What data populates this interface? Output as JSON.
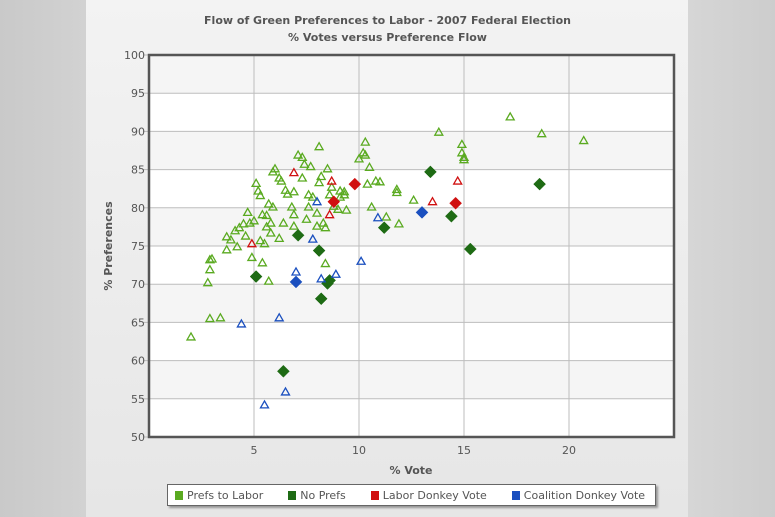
{
  "title": "Flow of Green Preferences to Labor - 2007 Federal Election",
  "subtitle": "% Votes versus Preference Flow",
  "colors": {
    "prefs_to_labor": "#5aaa20",
    "no_prefs": "#1e6b14",
    "labor_donkey": "#d01010",
    "coalition_donkey": "#1a4fbf",
    "plot_band": "#f5f5f5",
    "grid": "#bdbdbd",
    "axis": "#555555"
  },
  "legend": [
    {
      "label": "Prefs to Labor",
      "color": "#5aaa20"
    },
    {
      "label": "No Prefs",
      "color": "#1e6b14"
    },
    {
      "label": "Labor Donkey Vote",
      "color": "#d01010"
    },
    {
      "label": "Coalition Donkey Vote",
      "color": "#1a4fbf"
    }
  ],
  "chart_data": {
    "type": "scatter",
    "title": "Flow of Green Preferences to Labor - 2007 Federal Election",
    "subtitle": "% Votes versus Preference Flow",
    "xlabel": "% Vote",
    "ylabel": "% Preferences",
    "xlim": [
      0,
      25
    ],
    "ylim": [
      50,
      100
    ],
    "x_ticks": [
      5,
      10,
      15,
      20
    ],
    "y_ticks": [
      50,
      55,
      60,
      65,
      70,
      75,
      80,
      85,
      90,
      95,
      100
    ],
    "grid": true,
    "legend_position": "bottom",
    "series": [
      {
        "name": "Prefs to Labor",
        "marker": "triangle",
        "points": [
          [
            2.0,
            63.1
          ],
          [
            2.9,
            65.5
          ],
          [
            3.4,
            65.6
          ],
          [
            2.8,
            70.2
          ],
          [
            2.9,
            73.2
          ],
          [
            3.0,
            73.3
          ],
          [
            2.9,
            71.9
          ],
          [
            3.7,
            74.5
          ],
          [
            3.7,
            76.2
          ],
          [
            3.9,
            75.8
          ],
          [
            4.3,
            77.4
          ],
          [
            4.1,
            77.0
          ],
          [
            4.2,
            74.9
          ],
          [
            4.5,
            77.9
          ],
          [
            4.7,
            79.4
          ],
          [
            4.6,
            76.3
          ],
          [
            4.8,
            78.0
          ],
          [
            4.9,
            73.5
          ],
          [
            5.0,
            78.3
          ],
          [
            5.1,
            83.2
          ],
          [
            5.2,
            82.2
          ],
          [
            5.3,
            81.6
          ],
          [
            5.4,
            79.1
          ],
          [
            5.4,
            72.8
          ],
          [
            5.3,
            75.7
          ],
          [
            5.5,
            75.3
          ],
          [
            5.6,
            79.0
          ],
          [
            5.7,
            70.4
          ],
          [
            5.6,
            77.5
          ],
          [
            5.8,
            78.0
          ],
          [
            5.8,
            76.7
          ],
          [
            5.7,
            80.5
          ],
          [
            5.9,
            80.1
          ],
          [
            5.9,
            84.7
          ],
          [
            6.0,
            85.1
          ],
          [
            6.2,
            83.9
          ],
          [
            6.3,
            83.5
          ],
          [
            6.2,
            76.0
          ],
          [
            6.4,
            78.0
          ],
          [
            6.5,
            82.3
          ],
          [
            6.6,
            81.8
          ],
          [
            6.8,
            80.1
          ],
          [
            6.9,
            82.1
          ],
          [
            6.9,
            79.1
          ],
          [
            6.9,
            77.6
          ],
          [
            7.1,
            86.9
          ],
          [
            7.3,
            86.6
          ],
          [
            7.3,
            83.9
          ],
          [
            7.4,
            85.7
          ],
          [
            7.6,
            80.1
          ],
          [
            7.7,
            85.4
          ],
          [
            7.6,
            81.7
          ],
          [
            7.5,
            78.5
          ],
          [
            7.8,
            81.4
          ],
          [
            8.0,
            77.6
          ],
          [
            8.1,
            88.0
          ],
          [
            8.0,
            79.3
          ],
          [
            8.1,
            83.3
          ],
          [
            8.2,
            84.1
          ],
          [
            8.3,
            78.0
          ],
          [
            8.4,
            77.4
          ],
          [
            8.4,
            72.7
          ],
          [
            8.5,
            85.1
          ],
          [
            8.6,
            81.7
          ],
          [
            8.7,
            82.7
          ],
          [
            8.8,
            80.2
          ],
          [
            9.0,
            79.8
          ],
          [
            9.1,
            81.4
          ],
          [
            9.1,
            82.2
          ],
          [
            9.3,
            82.1
          ],
          [
            9.4,
            79.7
          ],
          [
            9.3,
            81.7
          ],
          [
            10.0,
            86.4
          ],
          [
            10.2,
            87.2
          ],
          [
            10.3,
            88.6
          ],
          [
            10.3,
            86.9
          ],
          [
            10.4,
            83.1
          ],
          [
            10.5,
            85.3
          ],
          [
            10.6,
            80.1
          ],
          [
            10.8,
            83.5
          ],
          [
            11.0,
            83.4
          ],
          [
            11.3,
            78.8
          ],
          [
            11.8,
            82.4
          ],
          [
            11.8,
            82.0
          ],
          [
            11.9,
            77.9
          ],
          [
            12.6,
            81.0
          ],
          [
            13.8,
            89.9
          ],
          [
            14.9,
            88.3
          ],
          [
            14.9,
            87.2
          ],
          [
            15.0,
            86.6
          ],
          [
            15.0,
            86.3
          ],
          [
            17.2,
            91.9
          ],
          [
            18.7,
            89.7
          ],
          [
            20.7,
            88.8
          ]
        ]
      },
      {
        "name": "No Prefs",
        "marker": "diamond",
        "points": [
          [
            6.4,
            58.6
          ],
          [
            5.1,
            71.0
          ],
          [
            7.1,
            76.4
          ],
          [
            8.1,
            74.4
          ],
          [
            8.5,
            70.1
          ],
          [
            8.6,
            70.5
          ],
          [
            8.2,
            68.1
          ],
          [
            11.2,
            77.4
          ],
          [
            13.4,
            84.7
          ],
          [
            14.4,
            78.9
          ],
          [
            15.3,
            74.6
          ],
          [
            18.6,
            83.1
          ]
        ]
      },
      {
        "name": "Labor Donkey Vote",
        "marker": "mixed",
        "points": [
          [
            6.9,
            84.6
          ],
          [
            4.9,
            75.3
          ],
          [
            8.7,
            83.5
          ],
          [
            8.6,
            79.1
          ],
          [
            13.5,
            80.8
          ],
          [
            14.7,
            83.5
          ],
          [
            9.8,
            83.1
          ],
          [
            8.8,
            80.8
          ],
          [
            14.6,
            80.6
          ]
        ]
      },
      {
        "name": "Coalition Donkey Vote",
        "marker": "mixed",
        "points": [
          [
            5.5,
            54.2
          ],
          [
            6.5,
            55.9
          ],
          [
            6.2,
            65.6
          ],
          [
            7.0,
            71.6
          ],
          [
            7.8,
            75.9
          ],
          [
            8.0,
            80.8
          ],
          [
            8.2,
            70.7
          ],
          [
            8.9,
            71.3
          ],
          [
            10.1,
            73.0
          ],
          [
            10.9,
            78.7
          ],
          [
            4.4,
            64.8
          ],
          [
            7.0,
            70.3
          ],
          [
            13.0,
            79.4
          ]
        ]
      }
    ]
  },
  "axes": {
    "xlabel": "% Vote",
    "ylabel": "% Preferences"
  }
}
